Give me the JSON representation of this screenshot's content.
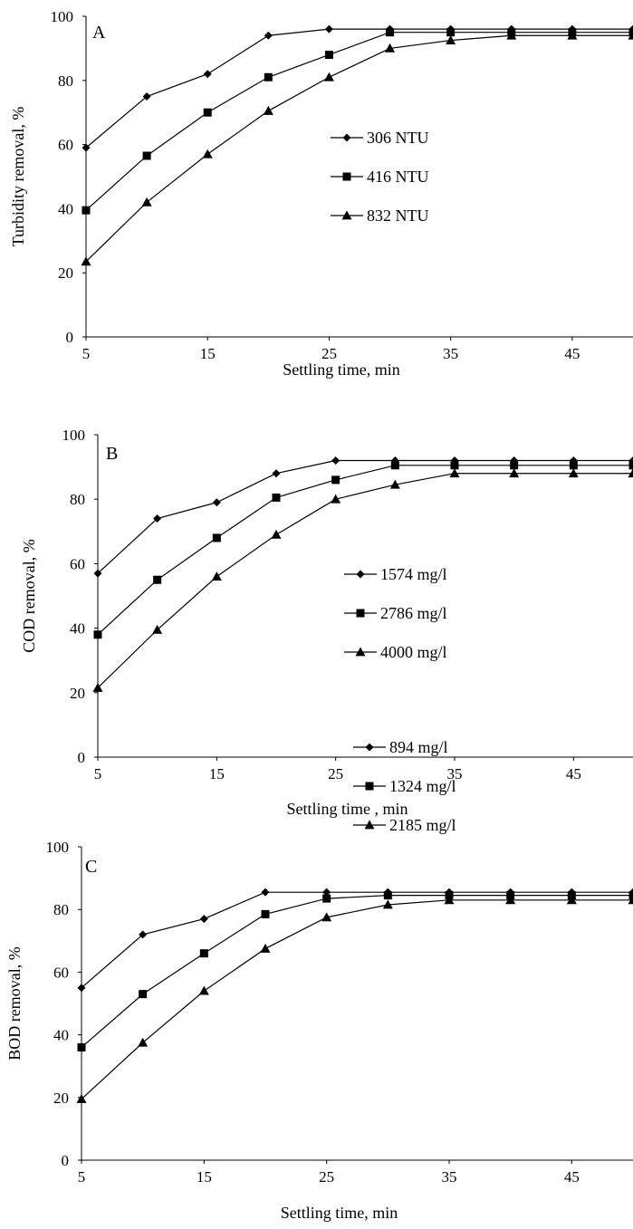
{
  "colors": {
    "series": "#000000",
    "axis": "#000000",
    "background": "#ffffff"
  },
  "chart_data": [
    {
      "type": "line",
      "panel_label": "A",
      "xlabel": "Settling time, min",
      "ylabel": "Turbidity removal, %",
      "x": [
        5,
        10,
        15,
        20,
        25,
        30,
        35,
        40,
        45,
        50
      ],
      "xlim": [
        5,
        50
      ],
      "xticks": [
        5,
        15,
        25,
        35,
        45
      ],
      "ylim": [
        0,
        100
      ],
      "yticks": [
        0,
        20,
        40,
        60,
        80,
        100
      ],
      "grid": false,
      "legend_position": "right-middle",
      "series": [
        {
          "name": "306 NTU",
          "marker": "diamond",
          "values": [
            59,
            75,
            82,
            94,
            96,
            96,
            96,
            96,
            96,
            96
          ]
        },
        {
          "name": "416 NTU",
          "marker": "square",
          "values": [
            39.5,
            56.5,
            70,
            81,
            88,
            95,
            95,
            95,
            95,
            95
          ]
        },
        {
          "name": "832 NTU",
          "marker": "triangle",
          "values": [
            23.5,
            42,
            57,
            70.5,
            81,
            90,
            92.5,
            94,
            94,
            94
          ]
        }
      ]
    },
    {
      "type": "line",
      "panel_label": "B",
      "xlabel": "Settling time , min",
      "ylabel": "COD removal, %",
      "x": [
        5,
        10,
        15,
        20,
        25,
        30,
        35,
        40,
        45,
        50
      ],
      "xlim": [
        5,
        50
      ],
      "xticks": [
        5,
        15,
        25,
        35,
        45
      ],
      "ylim": [
        0,
        100
      ],
      "yticks": [
        0,
        20,
        40,
        60,
        80,
        100
      ],
      "grid": false,
      "legend_position": "right-middle",
      "series": [
        {
          "name": "1574 mg/l",
          "marker": "diamond",
          "values": [
            57,
            74,
            79,
            88,
            92,
            92,
            92,
            92,
            92,
            92
          ]
        },
        {
          "name": "2786 mg/l",
          "marker": "square",
          "values": [
            38,
            55,
            68,
            80.5,
            86,
            90.5,
            90.5,
            90.5,
            90.5,
            90.5
          ]
        },
        {
          "name": "4000 mg/l",
          "marker": "triangle",
          "values": [
            21.5,
            39.5,
            56,
            69,
            80,
            84.5,
            88,
            88,
            88,
            88
          ]
        }
      ]
    },
    {
      "type": "line",
      "panel_label": "C",
      "xlabel": "Settling time, min",
      "ylabel": "BOD removal, %",
      "x": [
        5,
        10,
        15,
        20,
        25,
        30,
        35,
        40,
        45,
        50
      ],
      "xlim": [
        5,
        50
      ],
      "xticks": [
        5,
        15,
        25,
        35,
        45
      ],
      "ylim": [
        0,
        100
      ],
      "yticks": [
        0,
        20,
        40,
        60,
        80,
        100
      ],
      "grid": false,
      "legend_position": "right-middle",
      "series": [
        {
          "name": "894 mg/l",
          "marker": "diamond",
          "values": [
            55,
            72,
            77,
            85.5,
            85.5,
            85.5,
            85.5,
            85.5,
            85.5,
            85.5
          ]
        },
        {
          "name": "1324 mg/l",
          "marker": "square",
          "values": [
            36,
            53,
            66,
            78.5,
            83.5,
            84.5,
            84.5,
            84.5,
            84.5,
            84.5
          ]
        },
        {
          "name": "2185 mg/l",
          "marker": "triangle",
          "values": [
            19.5,
            37.5,
            54,
            67.5,
            77.5,
            81.5,
            83,
            83,
            83,
            83
          ]
        }
      ]
    }
  ]
}
